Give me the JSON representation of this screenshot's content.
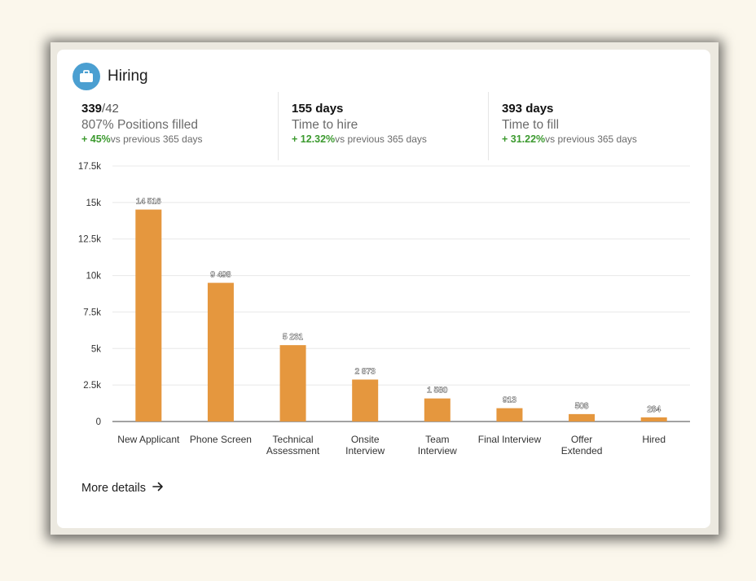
{
  "header": {
    "title": "Hiring",
    "icon": "briefcase-icon",
    "icon_color": "#4b9fd1"
  },
  "metrics": [
    {
      "value": "339",
      "separator": "/",
      "total": "42",
      "label": "807% Positions filled",
      "change": "+ 45%",
      "change_text": "vs previous 365 days"
    },
    {
      "value": "155 days",
      "label": "Time to hire",
      "change": "+ 12.32%",
      "change_text": "vs previous 365 days"
    },
    {
      "value": "393 days",
      "label": "Time to fill",
      "change": "+ 31.22%",
      "change_text": "vs previous 365 days"
    }
  ],
  "colors": {
    "bar": "#e5973e",
    "positive": "#3c9a2f"
  },
  "chart_data": {
    "type": "bar",
    "categories": [
      "New Applicant",
      "Phone Screen",
      "Technical Assessment",
      "Onsite Interview",
      "Team Interview",
      "Final Interview",
      "Offer Extended",
      "Hired"
    ],
    "category_lines": [
      [
        "New Applicant"
      ],
      [
        "Phone Screen"
      ],
      [
        "Technical",
        "Assessment"
      ],
      [
        "Onsite",
        "Interview"
      ],
      [
        "Team",
        "Interview"
      ],
      [
        "Final Interview"
      ],
      [
        "Offer",
        "Extended"
      ],
      [
        "Hired"
      ]
    ],
    "values": [
      14516,
      9498,
      5231,
      2873,
      1580,
      913,
      508,
      284
    ],
    "value_labels": [
      "14 516",
      "9 498",
      "5 231",
      "2 873",
      "1 580",
      "913",
      "508",
      "284"
    ],
    "yticks": [
      0,
      2500,
      5000,
      7500,
      10000,
      12500,
      15000,
      17500
    ],
    "ytick_labels": [
      "0",
      "2.5k",
      "5k",
      "7.5k",
      "10k",
      "12.5k",
      "15k",
      "17.5k"
    ],
    "ylim": [
      0,
      17500
    ],
    "grid": true
  },
  "footer": {
    "more_label": "More details"
  }
}
